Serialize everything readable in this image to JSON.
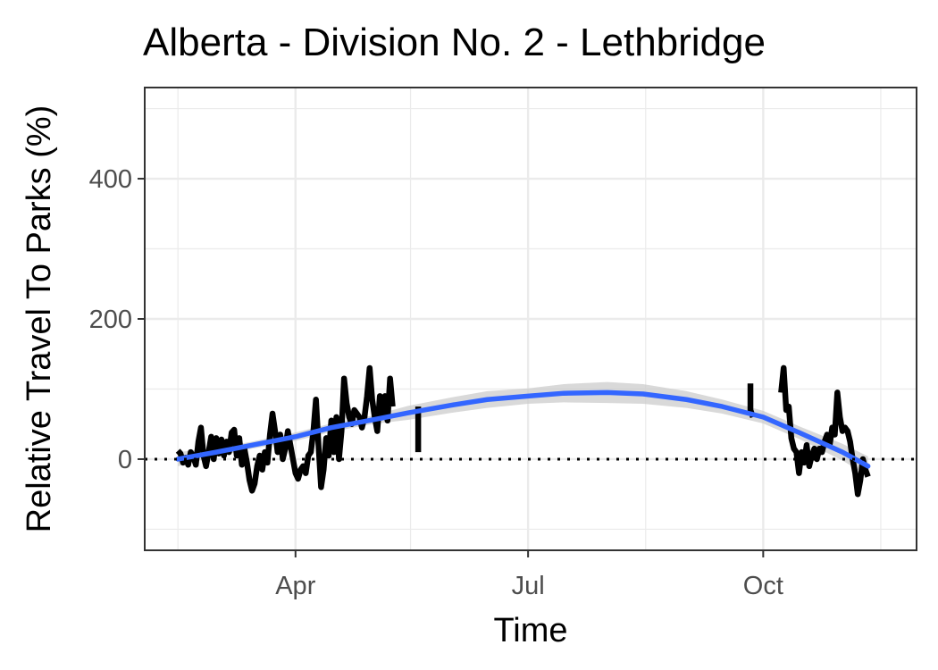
{
  "chart_data": {
    "type": "line",
    "title": "Alberta - Division No. 2 - Lethbridge",
    "xlabel": "Time",
    "ylabel": "Relative Travel To Parks (%)",
    "x_ticks": [
      {
        "date": "2020-04-01",
        "label": "Apr"
      },
      {
        "date": "2020-07-01",
        "label": "Jul"
      },
      {
        "date": "2020-10-01",
        "label": "Oct"
      }
    ],
    "y_ticks": [
      0,
      200,
      400
    ],
    "xlim": [
      "2020-02-02",
      "2020-11-30"
    ],
    "ylim": [
      -130,
      530
    ],
    "grid": true,
    "reference_line": {
      "y": 0,
      "style": "dotted"
    },
    "colors": {
      "observed": "#000000",
      "smooth": "#3366FF",
      "confidence_band": "#cccccc",
      "grid": "#ebebeb",
      "panel_border": "#333333"
    },
    "series": [
      {
        "role": "observed",
        "segments": [
          [
            [
              "2020-02-15",
              12
            ],
            [
              "2020-02-16",
              8
            ],
            [
              "2020-02-17",
              -5
            ],
            [
              "2020-02-18",
              2
            ],
            [
              "2020-02-19",
              -8
            ],
            [
              "2020-02-20",
              10
            ],
            [
              "2020-02-21",
              4
            ],
            [
              "2020-02-22",
              -8
            ],
            [
              "2020-02-23",
              25
            ],
            [
              "2020-02-24",
              45
            ],
            [
              "2020-02-25",
              5
            ],
            [
              "2020-02-26",
              -10
            ],
            [
              "2020-02-27",
              10
            ],
            [
              "2020-02-28",
              32
            ],
            [
              "2020-02-29",
              0
            ],
            [
              "2020-03-01",
              30
            ],
            [
              "2020-03-02",
              8
            ],
            [
              "2020-03-03",
              28
            ],
            [
              "2020-03-04",
              5
            ],
            [
              "2020-03-05",
              25
            ],
            [
              "2020-03-06",
              10
            ],
            [
              "2020-03-07",
              38
            ],
            [
              "2020-03-08",
              42
            ],
            [
              "2020-03-09",
              5
            ],
            [
              "2020-03-10",
              30
            ],
            [
              "2020-03-11",
              -8
            ],
            [
              "2020-03-12",
              15
            ],
            [
              "2020-03-13",
              -5
            ],
            [
              "2020-03-14",
              -30
            ],
            [
              "2020-03-15",
              -45
            ],
            [
              "2020-03-16",
              -35
            ],
            [
              "2020-03-17",
              -10
            ],
            [
              "2020-03-18",
              5
            ],
            [
              "2020-03-19",
              -15
            ],
            [
              "2020-03-20",
              10
            ],
            [
              "2020-03-21",
              -5
            ],
            [
              "2020-03-22",
              35
            ],
            [
              "2020-03-23",
              65
            ],
            [
              "2020-03-24",
              40
            ],
            [
              "2020-03-25",
              10
            ],
            [
              "2020-03-26",
              35
            ],
            [
              "2020-03-27",
              0
            ],
            [
              "2020-03-28",
              15
            ],
            [
              "2020-03-29",
              40
            ],
            [
              "2020-03-30",
              20
            ],
            [
              "2020-03-31",
              0
            ],
            [
              "2020-04-01",
              -20
            ],
            [
              "2020-04-02",
              -28
            ],
            [
              "2020-04-03",
              -15
            ],
            [
              "2020-04-04",
              -10
            ],
            [
              "2020-04-05",
              -20
            ],
            [
              "2020-04-06",
              5
            ],
            [
              "2020-04-07",
              10
            ],
            [
              "2020-04-08",
              40
            ],
            [
              "2020-04-09",
              85
            ],
            [
              "2020-04-10",
              20
            ],
            [
              "2020-04-11",
              -40
            ],
            [
              "2020-04-12",
              -15
            ],
            [
              "2020-04-13",
              30
            ],
            [
              "2020-04-14",
              5
            ],
            [
              "2020-04-15",
              55
            ],
            [
              "2020-04-16",
              10
            ],
            [
              "2020-04-17",
              60
            ],
            [
              "2020-04-18",
              0
            ],
            [
              "2020-04-19",
              40
            ],
            [
              "2020-04-20",
              115
            ],
            [
              "2020-04-21",
              80
            ],
            [
              "2020-04-22",
              60
            ],
            [
              "2020-04-23",
              50
            ],
            [
              "2020-04-24",
              70
            ],
            [
              "2020-04-25",
              65
            ],
            [
              "2020-04-26",
              60
            ],
            [
              "2020-04-27",
              45
            ],
            [
              "2020-04-28",
              60
            ],
            [
              "2020-04-29",
              90
            ],
            [
              "2020-04-30",
              130
            ],
            [
              "2020-05-01",
              85
            ],
            [
              "2020-05-02",
              60
            ],
            [
              "2020-05-03",
              40
            ],
            [
              "2020-05-04",
              90
            ],
            [
              "2020-05-05",
              65
            ],
            [
              "2020-05-06",
              90
            ],
            [
              "2020-05-07",
              55
            ],
            [
              "2020-05-08",
              115
            ],
            [
              "2020-05-09",
              75
            ]
          ],
          [
            [
              "2020-05-19",
              75
            ],
            [
              "2020-05-19",
              10
            ]
          ],
          [
            [
              "2020-09-26",
              108
            ],
            [
              "2020-09-26",
              70
            ],
            [
              "2020-09-27",
              60
            ]
          ],
          [
            [
              "2020-10-08",
              95
            ],
            [
              "2020-10-09",
              130
            ],
            [
              "2020-10-10",
              70
            ],
            [
              "2020-10-11",
              75
            ],
            [
              "2020-10-12",
              30
            ],
            [
              "2020-10-13",
              15
            ],
            [
              "2020-10-14",
              10
            ],
            [
              "2020-10-15",
              -20
            ],
            [
              "2020-10-16",
              10
            ],
            [
              "2020-10-17",
              -5
            ],
            [
              "2020-10-18",
              20
            ],
            [
              "2020-10-19",
              -10
            ],
            [
              "2020-10-20",
              5
            ],
            [
              "2020-10-21",
              15
            ],
            [
              "2020-10-22",
              0
            ],
            [
              "2020-10-23",
              15
            ],
            [
              "2020-10-24",
              10
            ],
            [
              "2020-10-25",
              25
            ],
            [
              "2020-10-26",
              35
            ],
            [
              "2020-10-27",
              20
            ],
            [
              "2020-10-28",
              45
            ],
            [
              "2020-10-29",
              35
            ],
            [
              "2020-10-30",
              95
            ],
            [
              "2020-10-31",
              60
            ],
            [
              "2020-11-01",
              40
            ],
            [
              "2020-11-02",
              45
            ],
            [
              "2020-11-03",
              40
            ],
            [
              "2020-11-04",
              25
            ],
            [
              "2020-11-05",
              0
            ],
            [
              "2020-11-06",
              -20
            ],
            [
              "2020-11-07",
              -50
            ],
            [
              "2020-11-08",
              -30
            ],
            [
              "2020-11-09",
              0
            ],
            [
              "2020-11-10",
              -15
            ],
            [
              "2020-11-11",
              -25
            ]
          ]
        ]
      },
      {
        "role": "smooth",
        "points": [
          [
            "2020-02-15",
            0
          ],
          [
            "2020-03-01",
            10
          ],
          [
            "2020-03-15",
            20
          ],
          [
            "2020-04-01",
            32
          ],
          [
            "2020-04-15",
            45
          ],
          [
            "2020-05-01",
            56
          ],
          [
            "2020-05-15",
            66
          ],
          [
            "2020-06-01",
            77
          ],
          [
            "2020-06-15",
            85
          ],
          [
            "2020-07-01",
            90
          ],
          [
            "2020-07-15",
            94
          ],
          [
            "2020-08-01",
            95
          ],
          [
            "2020-08-15",
            93
          ],
          [
            "2020-09-01",
            85
          ],
          [
            "2020-09-15",
            75
          ],
          [
            "2020-10-01",
            60
          ],
          [
            "2020-10-15",
            38
          ],
          [
            "2020-11-01",
            10
          ],
          [
            "2020-11-11",
            -10
          ]
        ],
        "ci_halfwidth": [
          10,
          6,
          5,
          6,
          6,
          6,
          10,
          11,
          12,
          11,
          13,
          15,
          14,
          12,
          10,
          9,
          9,
          12,
          14
        ]
      }
    ]
  }
}
